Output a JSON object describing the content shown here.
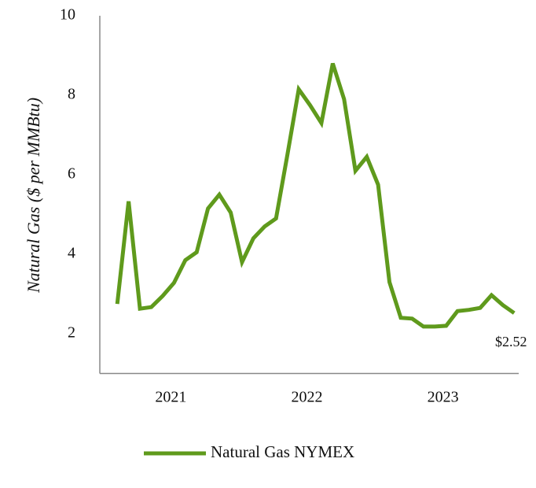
{
  "chart_data": {
    "type": "line",
    "y_label": "Natural Gas ($ per MMBtu)",
    "categories": [
      null,
      null,
      null,
      null,
      null,
      "2021",
      null,
      null,
      null,
      null,
      null,
      null,
      null,
      null,
      null,
      null,
      null,
      "2022",
      null,
      null,
      null,
      null,
      null,
      null,
      null,
      null,
      null,
      null,
      null,
      "2023",
      null,
      null,
      null,
      null,
      null,
      null
    ],
    "series": [
      {
        "name": "Natural Gas NYMEX",
        "color": "#5f9a1c",
        "values": [
          2.75,
          5.33,
          2.63,
          2.67,
          2.95,
          3.28,
          3.85,
          4.05,
          5.15,
          5.5,
          5.05,
          3.8,
          4.4,
          4.7,
          4.9,
          6.5,
          8.15,
          7.75,
          7.3,
          8.8,
          7.9,
          6.1,
          6.45,
          5.75,
          3.3,
          2.4,
          2.38,
          2.18,
          2.18,
          2.2,
          2.57,
          2.6,
          2.65,
          2.97,
          2.72,
          2.52
        ],
        "value_labels": [
          null,
          null,
          null,
          null,
          null,
          null,
          null,
          null,
          null,
          null,
          null,
          null,
          null,
          null,
          null,
          null,
          null,
          null,
          null,
          null,
          null,
          null,
          null,
          null,
          null,
          null,
          null,
          null,
          null,
          null,
          null,
          null,
          null,
          null,
          null,
          "$2.52"
        ]
      }
    ],
    "ylim": [
      1,
      10
    ],
    "yticks": [
      2,
      4,
      6,
      8,
      10
    ],
    "grid": false
  }
}
